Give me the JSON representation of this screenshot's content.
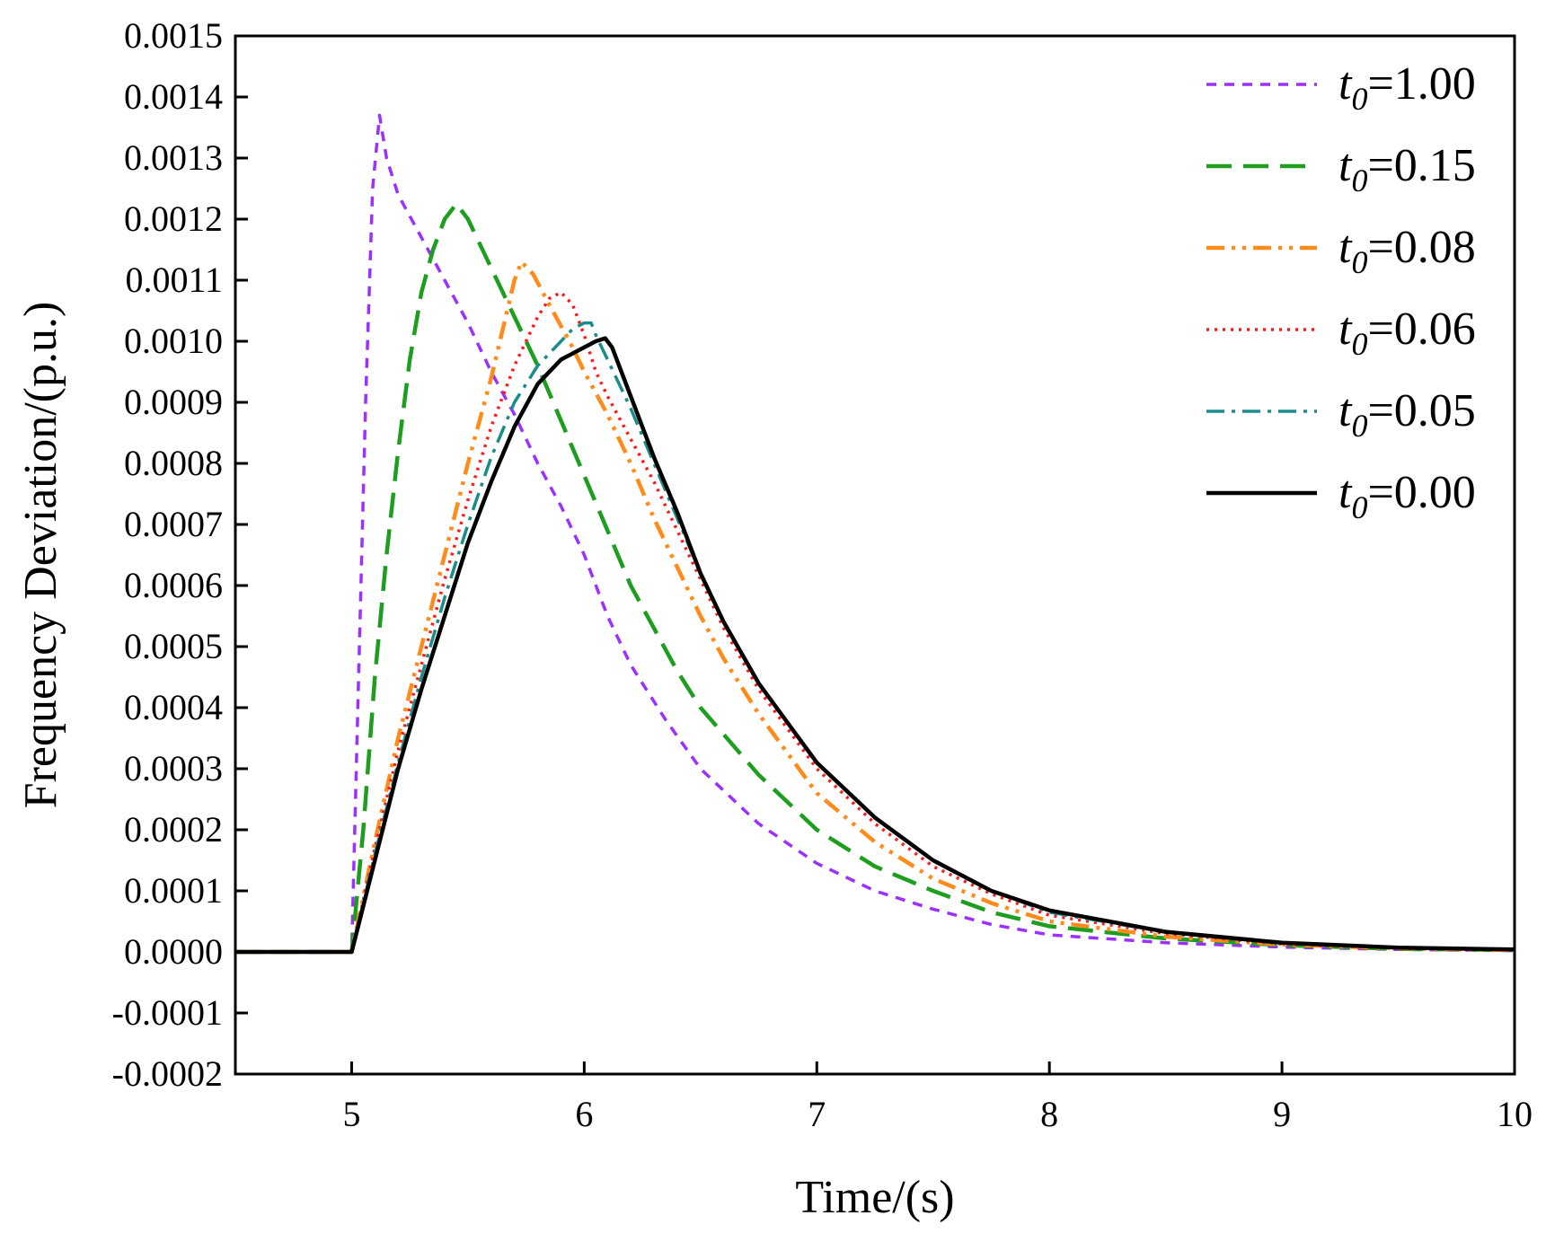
{
  "chart_data": {
    "type": "line",
    "title": "",
    "xlabel": "Time/(s)",
    "ylabel": "Frequency Deviation/(p.u.)",
    "xlim": [
      4.5,
      10
    ],
    "ylim": [
      -0.0002,
      0.0015
    ],
    "xticks": [
      5,
      6,
      7,
      8,
      9,
      10
    ],
    "xtick_labels": [
      "5",
      "6",
      "7",
      "8",
      "9",
      "10"
    ],
    "yticks": [
      -0.0002,
      -0.0001,
      0.0,
      0.0001,
      0.0002,
      0.0003,
      0.0004,
      0.0005,
      0.0006,
      0.0007,
      0.0008,
      0.0009,
      0.001,
      0.0011,
      0.0012,
      0.0013,
      0.0014,
      0.0015
    ],
    "ytick_labels": [
      "-0.0002",
      "-0.0001",
      "0.0000",
      "0.0001",
      "0.0002",
      "0.0003",
      "0.0004",
      "0.0005",
      "0.0006",
      "0.0007",
      "0.0008",
      "0.0009",
      "0.0010",
      "0.0011",
      "0.0012",
      "0.0013",
      "0.0014",
      "0.0015"
    ],
    "grid": false,
    "legend_position": "top-right",
    "series": [
      {
        "name": "t0=1.00",
        "label_var": "t",
        "label_sub": "0",
        "label_value": "=1.00",
        "color": "#9B30FF",
        "style": "short-dash",
        "x": [
          4.5,
          5.0,
          5.03,
          5.06,
          5.09,
          5.12,
          5.15,
          5.2,
          5.3,
          5.4,
          5.5,
          5.6,
          5.7,
          5.8,
          5.9,
          6.0,
          6.1,
          6.2,
          6.35,
          6.5,
          6.75,
          7.0,
          7.25,
          7.5,
          7.75,
          8.0,
          8.5,
          9.0,
          9.5,
          10.0
        ],
        "y": [
          0.0,
          0.0,
          0.00045,
          0.0009,
          0.00125,
          0.00137,
          0.0013,
          0.00124,
          0.00117,
          0.0011,
          0.00103,
          0.00095,
          0.00088,
          0.0008,
          0.00073,
          0.00065,
          0.00055,
          0.00047,
          0.00038,
          0.0003,
          0.00021,
          0.000145,
          0.0001,
          7e-05,
          4.5e-05,
          2.8e-05,
          1.5e-05,
          8e-06,
          4e-06,
          2e-06
        ]
      },
      {
        "name": "t0=0.15",
        "label_var": "t",
        "label_sub": "0",
        "label_value": "=0.15",
        "color": "#1E9E1E",
        "style": "long-dash",
        "x": [
          4.5,
          5.0,
          5.05,
          5.1,
          5.15,
          5.2,
          5.25,
          5.3,
          5.35,
          5.4,
          5.45,
          5.5,
          5.6,
          5.7,
          5.8,
          5.9,
          6.0,
          6.1,
          6.2,
          6.3,
          6.4,
          6.5,
          6.75,
          7.0,
          7.25,
          7.5,
          7.75,
          8.0,
          8.5,
          9.0,
          9.5,
          10.0
        ],
        "y": [
          0.0,
          0.0,
          0.0002,
          0.00045,
          0.00065,
          0.00082,
          0.00097,
          0.00108,
          0.00115,
          0.0012,
          0.001225,
          0.0012,
          0.00112,
          0.00104,
          0.00096,
          0.00087,
          0.00078,
          0.00069,
          0.0006,
          0.00053,
          0.00046,
          0.0004,
          0.00029,
          0.0002,
          0.00014,
          0.0001,
          6.5e-05,
          4.2e-05,
          2.2e-05,
          1.1e-05,
          5e-06,
          3e-06
        ]
      },
      {
        "name": "t0=0.08",
        "label_var": "t",
        "label_sub": "0",
        "label_value": "=0.08",
        "color": "#FF8C1A",
        "style": "dash-dot-dot",
        "x": [
          4.5,
          5.0,
          5.1,
          5.2,
          5.3,
          5.4,
          5.5,
          5.6,
          5.65,
          5.7,
          5.73,
          5.78,
          5.85,
          5.95,
          6.0,
          6.1,
          6.2,
          6.3,
          6.4,
          6.5,
          6.6,
          6.75,
          7.0,
          7.25,
          7.5,
          7.75,
          8.0,
          8.5,
          9.0,
          9.5,
          10.0
        ],
        "y": [
          0.0,
          0.0,
          0.00018,
          0.00035,
          0.0005,
          0.00065,
          0.0008,
          0.00094,
          0.00102,
          0.0011,
          0.00113,
          0.00111,
          0.00106,
          0.00099,
          0.00095,
          0.00088,
          0.0008,
          0.00071,
          0.00063,
          0.00055,
          0.00048,
          0.00039,
          0.00026,
          0.00018,
          0.00012,
          8e-05,
          5e-05,
          2.5e-05,
          1.2e-05,
          6e-06,
          3e-06
        ]
      },
      {
        "name": "t0=0.06",
        "label_var": "t",
        "label_sub": "0",
        "label_value": "=0.06",
        "color": "#FF1A1A",
        "style": "dotted",
        "x": [
          4.5,
          5.0,
          5.1,
          5.2,
          5.3,
          5.4,
          5.5,
          5.6,
          5.7,
          5.75,
          5.8,
          5.85,
          5.9,
          5.95,
          6.0,
          6.05,
          6.1,
          6.2,
          6.3,
          6.4,
          6.5,
          6.6,
          6.75,
          7.0,
          7.25,
          7.5,
          7.75,
          8.0,
          8.5,
          9.0,
          9.5,
          10.0
        ],
        "y": [
          0.0,
          0.0,
          0.00017,
          0.00033,
          0.00047,
          0.00061,
          0.00074,
          0.00086,
          0.00096,
          0.001,
          0.00104,
          0.00107,
          0.00108,
          0.00106,
          0.00101,
          0.00095,
          0.00091,
          0.00084,
          0.00077,
          0.00069,
          0.00061,
          0.00053,
          0.00043,
          0.0003,
          0.00021,
          0.00014,
          9.5e-05,
          6e-05,
          3e-05,
          1.3e-05,
          6e-06,
          3e-06
        ]
      },
      {
        "name": "t0=0.05",
        "label_var": "t",
        "label_sub": "0",
        "label_value": "=0.05",
        "color": "#1A8C8C",
        "style": "dash-dot",
        "x": [
          4.5,
          5.0,
          5.1,
          5.2,
          5.3,
          5.4,
          5.5,
          5.6,
          5.7,
          5.8,
          5.9,
          5.95,
          6.0,
          6.03,
          6.05,
          6.1,
          6.2,
          6.3,
          6.4,
          6.5,
          6.6,
          6.75,
          7.0,
          7.25,
          7.5,
          7.75,
          8.0,
          8.5,
          9.0,
          9.5,
          10.0
        ],
        "y": [
          0.0,
          0.0,
          0.00016,
          0.00031,
          0.00045,
          0.00058,
          0.0007,
          0.00081,
          0.0009,
          0.00096,
          0.001,
          0.00102,
          0.00103,
          0.00103,
          0.00101,
          0.00097,
          0.00089,
          0.0008,
          0.00071,
          0.00062,
          0.00054,
          0.00044,
          0.00031,
          0.00022,
          0.00015,
          0.0001,
          6.5e-05,
          3.2e-05,
          1.4e-05,
          7e-06,
          4e-06
        ]
      },
      {
        "name": "t0=0.00",
        "label_var": "t",
        "label_sub": "0",
        "label_value": "=0.00",
        "color": "#000000",
        "style": "solid",
        "x": [
          4.5,
          5.0,
          5.1,
          5.2,
          5.3,
          5.4,
          5.5,
          5.6,
          5.7,
          5.8,
          5.9,
          6.0,
          6.05,
          6.09,
          6.12,
          6.2,
          6.3,
          6.4,
          6.5,
          6.6,
          6.75,
          7.0,
          7.25,
          7.5,
          7.75,
          8.0,
          8.5,
          9.0,
          9.5,
          10.0
        ],
        "y": [
          0.0,
          0.0,
          0.00015,
          0.0003,
          0.00043,
          0.00055,
          0.00067,
          0.00077,
          0.00086,
          0.00093,
          0.00097,
          0.00099,
          0.001,
          0.001005,
          0.00099,
          0.00091,
          0.00081,
          0.00072,
          0.00062,
          0.00054,
          0.00044,
          0.00031,
          0.00022,
          0.00015,
          0.0001,
          6.8e-05,
          3.3e-05,
          1.5e-05,
          7e-06,
          4e-06
        ]
      }
    ]
  }
}
